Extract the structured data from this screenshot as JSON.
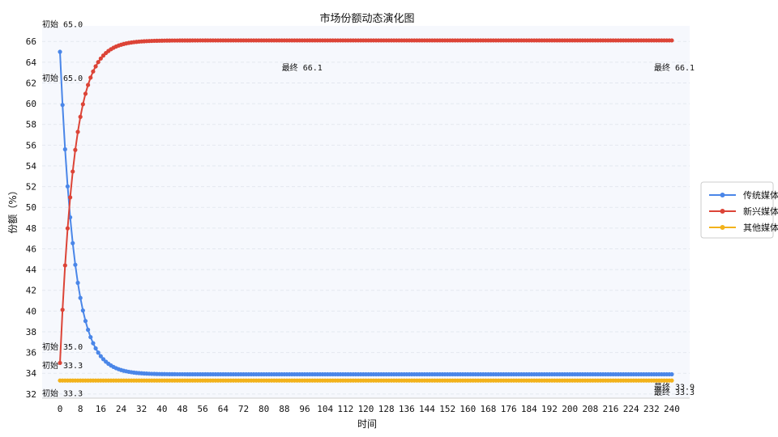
{
  "chart_data": {
    "type": "line",
    "title": "市场份额动态演化图",
    "xlabel": "时间",
    "ylabel": "份额（%）",
    "xlim": [
      -7,
      247
    ],
    "ylim": [
      31.6,
      67.5
    ],
    "xticks": [
      0,
      8,
      16,
      24,
      32,
      40,
      48,
      56,
      64,
      72,
      80,
      88,
      96,
      104,
      112,
      120,
      128,
      136,
      144,
      152,
      160,
      168,
      176,
      184,
      192,
      200,
      208,
      216,
      224,
      232,
      240
    ],
    "yticks": [
      32,
      34,
      36,
      38,
      40,
      42,
      44,
      46,
      48,
      50,
      52,
      54,
      56,
      58,
      60,
      62,
      64,
      66
    ],
    "grid": "horizontal-dashed",
    "legend_position": "right",
    "x_end": 240,
    "series": [
      {
        "name": "传统媒体",
        "color": "#4a86e8",
        "start": 65.0,
        "end": 33.9,
        "decay": 0.18
      },
      {
        "name": "新兴媒体",
        "color": "#dc4437",
        "start": 35.0,
        "end": 66.1,
        "decay": 0.18
      },
      {
        "name": "其他媒体",
        "color": "#f2b21b",
        "start": 33.3,
        "end": 33.3,
        "decay": 0.18
      }
    ],
    "annotations": [
      {
        "text": "初始 65.0",
        "x": -7,
        "y": 67.4
      },
      {
        "text": "初始 65.0",
        "x": -7,
        "y": 62.2
      },
      {
        "text": "最终 66.1",
        "x": 87,
        "y": 63.2
      },
      {
        "text": "最终 66.1",
        "x": 233,
        "y": 63.2
      },
      {
        "text": "初始 35.0",
        "x": -7,
        "y": 36.3
      },
      {
        "text": "初始 33.3",
        "x": -7,
        "y": 34.5
      },
      {
        "text": "初始 33.3",
        "x": -7,
        "y": 31.8
      },
      {
        "text": "最终 33.9",
        "x": 233,
        "y": 32.4
      },
      {
        "text": "最终 33.3",
        "x": 233,
        "y": 31.9
      }
    ]
  }
}
